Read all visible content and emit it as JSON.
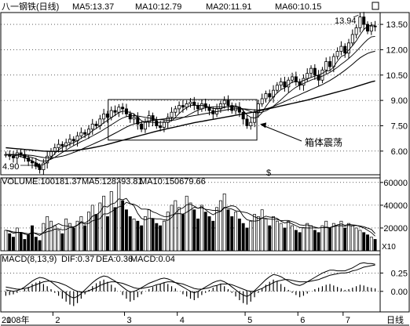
{
  "header": {
    "title": "八一钢铁(日线)",
    "ma5": "MA5:13.37",
    "ma10": "MA10:12.79",
    "ma20": "MA20:11.91",
    "ma60": "MA60:10.15"
  },
  "volume_header": {
    "volume": "VOLUME:100181.37",
    "ma5": "MA5:128393.81",
    "ma10": "MA10:150679.66",
    "multiplier": "X10"
  },
  "macd_header": {
    "params": "MACD(8,13,9)",
    "dif": "DIF:0.37",
    "dea": "DEA:0.36",
    "macd": "MACD:0.04"
  },
  "annotations": {
    "high_label": "13.94",
    "low_label": "4.90",
    "box_label": "箱体震荡",
    "dollar_mark": "$"
  },
  "xaxis": {
    "year": "2008年",
    "months": [
      "1",
      "2",
      "3",
      "4",
      "5",
      "6",
      "7"
    ],
    "period": "日线"
  },
  "colors": {
    "candle": "#000000",
    "grid": "#000000",
    "background": "#ffffff"
  },
  "chart_data": [
    {
      "type": "candlestick",
      "ylim": [
        4.6,
        14.2
      ],
      "yticks": [
        6.0,
        7.5,
        9.0,
        10.5,
        12.0,
        13.5
      ],
      "ytick_labels": [
        "6.00",
        "7.50",
        "9.00",
        "10.50",
        "12.00",
        "13.50"
      ],
      "close": [
        5.8,
        5.7,
        5.6,
        5.9,
        5.8,
        5.6,
        5.4,
        5.3,
        5.1,
        4.9,
        5.3,
        5.7,
        6.0,
        6.2,
        6.4,
        6.3,
        6.5,
        6.7,
        6.6,
        6.9,
        7.1,
        7.0,
        7.3,
        7.6,
        7.5,
        7.9,
        8.2,
        8.0,
        8.4,
        8.3,
        8.6,
        8.5,
        8.2,
        7.9,
        8.0,
        7.6,
        7.3,
        7.7,
        8.1,
        7.8,
        7.5,
        7.4,
        7.7,
        8.0,
        8.3,
        8.5,
        8.7,
        8.6,
        8.8,
        8.9,
        8.7,
        8.5,
        8.8,
        8.6,
        8.4,
        8.2,
        8.5,
        8.8,
        9.0,
        8.7,
        8.4,
        8.6,
        8.3,
        7.9,
        7.5,
        7.7,
        8.3,
        8.8,
        9.1,
        9.4,
        9.2,
        9.6,
        9.9,
        10.1,
        9.8,
        10.2,
        10.4,
        10.1,
        9.9,
        10.3,
        10.6,
        10.9,
        10.5,
        10.2,
        10.8,
        11.3,
        11.0,
        11.6,
        11.9,
        12.2,
        11.8,
        12.4,
        12.9,
        13.3,
        13.94,
        13.5,
        13.1,
        13.4,
        13.37
      ],
      "ma5": [
        5.8,
        5.78,
        5.75,
        5.72,
        5.68,
        5.6,
        5.52,
        5.42,
        5.3,
        5.16,
        5.2,
        5.36,
        5.6,
        5.86,
        6.08,
        6.22,
        6.32,
        6.4,
        6.5,
        6.62,
        6.76,
        6.88,
        7.02,
        7.2,
        7.34,
        7.5,
        7.68,
        7.82,
        7.98,
        8.12,
        8.28,
        8.36,
        8.36,
        8.28,
        8.2,
        8.0,
        7.8,
        7.72,
        7.72,
        7.7,
        7.68,
        7.7,
        7.72,
        7.7,
        7.78,
        8.0,
        8.22,
        8.42,
        8.58,
        8.7,
        8.72,
        8.7,
        8.7,
        8.68,
        8.6,
        8.52,
        8.52,
        8.52,
        8.58,
        8.64,
        8.66,
        8.68,
        8.6,
        8.4,
        8.14,
        8.0,
        7.96,
        8.04,
        8.28,
        8.64,
        8.94,
        9.22,
        9.44,
        9.64,
        9.74,
        9.92,
        10.08,
        10.12,
        10.08,
        10.18,
        10.26,
        10.36,
        10.44,
        10.5,
        10.6,
        10.74,
        10.76,
        10.98,
        11.32,
        11.6,
        11.7,
        11.98,
        12.24,
        12.52,
        12.88,
        13.2,
        13.38,
        13.46,
        13.45
      ],
      "ma10": [
        5.8,
        5.8,
        5.79,
        5.78,
        5.76,
        5.72,
        5.68,
        5.62,
        5.54,
        5.44,
        5.4,
        5.44,
        5.52,
        5.64,
        5.78,
        5.92,
        6.06,
        6.2,
        6.32,
        6.44,
        6.56,
        6.66,
        6.78,
        6.9,
        7.02,
        7.14,
        7.28,
        7.42,
        7.56,
        7.7,
        7.84,
        7.96,
        8.04,
        8.08,
        8.1,
        8.08,
        8.04,
        8.0,
        7.96,
        7.92,
        7.88,
        7.86,
        7.84,
        7.82,
        7.82,
        7.84,
        7.9,
        7.98,
        8.08,
        8.2,
        8.32,
        8.42,
        8.5,
        8.56,
        8.6,
        8.62,
        8.62,
        8.62,
        8.62,
        8.62,
        8.62,
        8.6,
        8.56,
        8.5,
        8.42,
        8.34,
        8.28,
        8.26,
        8.3,
        8.38,
        8.5,
        8.66,
        8.84,
        9.04,
        9.24,
        9.44,
        9.62,
        9.78,
        9.9,
        10.0,
        10.1,
        10.2,
        10.28,
        10.36,
        10.44,
        10.54,
        10.66,
        10.8,
        10.96,
        11.14,
        11.3,
        11.48,
        11.68,
        11.9,
        12.14,
        12.38,
        12.6,
        12.76,
        12.79
      ],
      "ma20": [
        5.8,
        5.8,
        5.8,
        5.8,
        5.79,
        5.78,
        5.76,
        5.74,
        5.7,
        5.66,
        5.62,
        5.6,
        5.6,
        5.62,
        5.66,
        5.7,
        5.76,
        5.84,
        5.92,
        6.0,
        6.1,
        6.2,
        6.3,
        6.4,
        6.5,
        6.6,
        6.7,
        6.82,
        6.94,
        7.06,
        7.18,
        7.3,
        7.42,
        7.52,
        7.6,
        7.66,
        7.7,
        7.74,
        7.78,
        7.82,
        7.86,
        7.88,
        7.9,
        7.92,
        7.94,
        7.96,
        7.98,
        8.0,
        8.02,
        8.06,
        8.1,
        8.14,
        8.18,
        8.22,
        8.26,
        8.3,
        8.34,
        8.38,
        8.42,
        8.46,
        8.48,
        8.5,
        8.5,
        8.5,
        8.48,
        8.46,
        8.44,
        8.44,
        8.46,
        8.5,
        8.56,
        8.64,
        8.74,
        8.84,
        8.94,
        9.04,
        9.14,
        9.24,
        9.34,
        9.44,
        9.54,
        9.64,
        9.74,
        9.84,
        9.94,
        10.06,
        10.18,
        10.32,
        10.46,
        10.62,
        10.78,
        10.96,
        11.14,
        11.34,
        11.52,
        11.66,
        11.78,
        11.86,
        11.91
      ],
      "ma60": [
        6.2,
        6.18,
        6.16,
        6.14,
        6.12,
        6.1,
        6.08,
        6.06,
        6.04,
        6.02,
        6.0,
        5.99,
        5.98,
        5.98,
        5.98,
        5.99,
        6.0,
        6.02,
        6.04,
        6.06,
        6.09,
        6.12,
        6.16,
        6.2,
        6.24,
        6.29,
        6.34,
        6.4,
        6.46,
        6.52,
        6.58,
        6.64,
        6.7,
        6.76,
        6.82,
        6.88,
        6.94,
        7.0,
        7.06,
        7.12,
        7.18,
        7.23,
        7.28,
        7.33,
        7.38,
        7.43,
        7.48,
        7.53,
        7.58,
        7.63,
        7.68,
        7.72,
        7.76,
        7.8,
        7.84,
        7.88,
        7.92,
        7.96,
        8.0,
        8.04,
        8.08,
        8.12,
        8.16,
        8.2,
        8.24,
        8.28,
        8.32,
        8.37,
        8.42,
        8.47,
        8.52,
        8.57,
        8.62,
        8.67,
        8.72,
        8.77,
        8.82,
        8.87,
        8.92,
        8.97,
        9.02,
        9.08,
        9.14,
        9.2,
        9.26,
        9.32,
        9.38,
        9.44,
        9.5,
        9.56,
        9.62,
        9.68,
        9.75,
        9.82,
        9.89,
        9.96,
        10.03,
        10.1,
        10.15
      ]
    },
    {
      "type": "bar",
      "ylim": [
        0,
        64000
      ],
      "yticks": [
        20000,
        40000,
        60000
      ],
      "ytick_labels": [
        "20000",
        "40000",
        "60000"
      ],
      "values": [
        18000,
        15000,
        12000,
        20000,
        16000,
        10000,
        14000,
        22000,
        12000,
        9000,
        24000,
        30000,
        26000,
        22000,
        18000,
        15000,
        28000,
        24000,
        20000,
        26000,
        30000,
        22000,
        34000,
        40000,
        32000,
        42000,
        48000,
        30000,
        52000,
        38000,
        60000,
        44000,
        36000,
        30000,
        28000,
        26000,
        22000,
        30000,
        36000,
        28000,
        24000,
        22000,
        26000,
        34000,
        40000,
        44000,
        38000,
        32000,
        48000,
        42000,
        36000,
        28000,
        40000,
        34000,
        30000,
        26000,
        38000,
        44000,
        50000,
        36000,
        30000,
        34000,
        28000,
        24000,
        20000,
        26000,
        32000,
        30000,
        36000,
        28000,
        22000,
        30000,
        26000,
        24000,
        20000,
        26000,
        22000,
        18000,
        16000,
        20000,
        24000,
        22000,
        18000,
        16000,
        22000,
        26000,
        20000,
        24000,
        22000,
        26000,
        20000,
        24000,
        22000,
        20000,
        18000,
        16000,
        14000,
        12000,
        10018
      ],
      "ma5": [
        18000,
        17000,
        15500,
        16000,
        16200,
        14600,
        14000,
        16400,
        14800,
        13400,
        16200,
        19400,
        20200,
        22200,
        23800,
        22200,
        21800,
        21400,
        21000,
        22600,
        25600,
        24400,
        26400,
        30400,
        31600,
        34000,
        39200,
        38400,
        41000,
        42000,
        45600,
        44800,
        46000,
        41600,
        39600,
        32800,
        28400,
        27200,
        28400,
        28400,
        28000,
        28000,
        27200,
        26800,
        29200,
        33200,
        36400,
        37600,
        40400,
        40800,
        39200,
        37200,
        38800,
        36000,
        33600,
        31600,
        33600,
        34400,
        37600,
        38800,
        39600,
        38800,
        35600,
        30400,
        27200,
        26400,
        26000,
        26400,
        28800,
        30400,
        29600,
        29200,
        28400,
        26000,
        24400,
        25200,
        23600,
        22000,
        20400,
        20400,
        20000,
        20000,
        20000,
        20000,
        20400,
        20800,
        20400,
        21600,
        22800,
        23600,
        22400,
        23200,
        22800,
        22400,
        21200,
        20000,
        18000,
        16000,
        12839
      ],
      "ma10": [
        18000,
        17500,
        16500,
        16250,
        16200,
        15500,
        14900,
        15800,
        15400,
        14700,
        15400,
        16700,
        17500,
        18900,
        19300,
        18400,
        18700,
        20400,
        20600,
        22400,
        24700,
        23300,
        24100,
        26300,
        27200,
        28200,
        32400,
        32400,
        34200,
        36500,
        38600,
        39200,
        42600,
        41300,
        40800,
        39200,
        36600,
        36600,
        36300,
        34200,
        33000,
        31300,
        30100,
        30000,
        31300,
        32400,
        32600,
        32200,
        33800,
        36000,
        38200,
        37400,
        37800,
        36400,
        36000,
        35400,
        35500,
        34800,
        38200,
        37400,
        36600,
        35200,
        34600,
        34000,
        33400,
        31800,
        29800,
        28400,
        28400,
        28400,
        27800,
        27600,
        27400,
        26400,
        26600,
        26600,
        25600,
        24400,
        22800,
        22400,
        22800,
        21800,
        20800,
        20000,
        20400,
        20400,
        20400,
        21200,
        22000,
        22000,
        21600,
        22200,
        21800,
        22200,
        21800,
        21100,
        19900,
        18800,
        15068
      ]
    },
    {
      "type": "bar",
      "ylim": [
        -0.28,
        0.5
      ],
      "yticks": [
        0.0,
        0.25
      ],
      "ytick_labels": [
        "0.00",
        "0.25"
      ],
      "values": [
        -0.06,
        -0.05,
        -0.04,
        -0.02,
        0.0,
        0.03,
        0.06,
        0.1,
        0.12,
        0.14,
        0.1,
        0.07,
        0.03,
        -0.02,
        -0.06,
        -0.1,
        -0.14,
        -0.18,
        -0.2,
        -0.16,
        -0.1,
        -0.04,
        0.02,
        0.07,
        0.11,
        0.14,
        0.16,
        0.13,
        0.09,
        0.05,
        0.0,
        -0.05,
        -0.1,
        -0.14,
        -0.12,
        -0.08,
        -0.04,
        0.0,
        0.03,
        0.06,
        0.08,
        0.1,
        0.12,
        0.1,
        0.07,
        0.04,
        0.0,
        -0.04,
        -0.07,
        -0.1,
        -0.12,
        -0.09,
        -0.05,
        -0.02,
        0.02,
        0.05,
        0.08,
        0.1,
        0.07,
        0.03,
        -0.02,
        -0.07,
        -0.12,
        -0.16,
        -0.18,
        -0.14,
        -0.08,
        -0.02,
        0.04,
        0.09,
        0.13,
        0.16,
        0.14,
        0.1,
        0.06,
        0.02,
        -0.02,
        -0.05,
        -0.08,
        -0.06,
        -0.03,
        0.0,
        0.03,
        0.05,
        0.07,
        0.09,
        0.1,
        0.08,
        0.06,
        0.04,
        0.02,
        0.03,
        0.05,
        0.07,
        0.09,
        0.08,
        0.06,
        0.05,
        0.04
      ],
      "dif": [
        0.02,
        0.01,
        0.0,
        0.01,
        0.03,
        0.06,
        0.1,
        0.14,
        0.17,
        0.19,
        0.18,
        0.16,
        0.13,
        0.09,
        0.05,
        0.01,
        -0.03,
        -0.07,
        -0.09,
        -0.07,
        -0.03,
        0.02,
        0.07,
        0.12,
        0.16,
        0.19,
        0.21,
        0.2,
        0.17,
        0.14,
        0.1,
        0.06,
        0.02,
        -0.01,
        0.0,
        0.02,
        0.05,
        0.08,
        0.11,
        0.13,
        0.15,
        0.17,
        0.18,
        0.17,
        0.15,
        0.12,
        0.09,
        0.06,
        0.03,
        0.0,
        -0.02,
        0.0,
        0.03,
        0.06,
        0.09,
        0.12,
        0.14,
        0.15,
        0.13,
        0.1,
        0.06,
        0.02,
        -0.02,
        -0.05,
        -0.07,
        -0.04,
        0.01,
        0.06,
        0.11,
        0.16,
        0.2,
        0.23,
        0.22,
        0.2,
        0.17,
        0.14,
        0.11,
        0.09,
        0.08,
        0.1,
        0.13,
        0.16,
        0.19,
        0.22,
        0.25,
        0.27,
        0.29,
        0.29,
        0.28,
        0.28,
        0.28,
        0.3,
        0.32,
        0.35,
        0.38,
        0.39,
        0.38,
        0.38,
        0.37
      ],
      "dea": [
        0.06,
        0.05,
        0.04,
        0.03,
        0.03,
        0.04,
        0.05,
        0.07,
        0.09,
        0.11,
        0.13,
        0.14,
        0.14,
        0.13,
        0.12,
        0.1,
        0.08,
        0.05,
        0.02,
        0.0,
        -0.01,
        -0.01,
        0.01,
        0.03,
        0.05,
        0.08,
        0.1,
        0.12,
        0.13,
        0.13,
        0.12,
        0.11,
        0.09,
        0.07,
        0.05,
        0.04,
        0.04,
        0.05,
        0.06,
        0.07,
        0.09,
        0.1,
        0.12,
        0.13,
        0.13,
        0.12,
        0.11,
        0.1,
        0.08,
        0.06,
        0.04,
        0.03,
        0.03,
        0.04,
        0.05,
        0.07,
        0.08,
        0.1,
        0.1,
        0.1,
        0.09,
        0.07,
        0.05,
        0.03,
        0.01,
        0.0,
        0.0,
        0.02,
        0.04,
        0.07,
        0.09,
        0.12,
        0.14,
        0.15,
        0.16,
        0.16,
        0.15,
        0.14,
        0.13,
        0.13,
        0.13,
        0.14,
        0.15,
        0.16,
        0.18,
        0.2,
        0.22,
        0.23,
        0.24,
        0.25,
        0.25,
        0.26,
        0.28,
        0.29,
        0.31,
        0.33,
        0.34,
        0.35,
        0.36
      ]
    }
  ]
}
